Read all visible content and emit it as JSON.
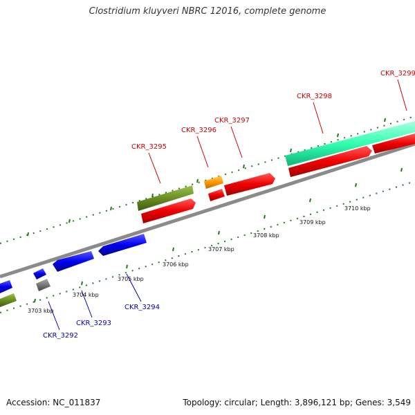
{
  "title": "Clostridium kluyveri NBRC 12016, complete genome",
  "footer": {
    "accession": "Accession: NC_011837",
    "summary": "Topology: circular; Length: 3,896,121 bp; Genes: 3,549"
  },
  "colors": {
    "backbone": "#8a8a8a",
    "tick": "#1f7a1f",
    "red": "#ee0000",
    "olive": "#6b8e23",
    "orange": "#ff9900",
    "teal": "#33ffb0",
    "blue": "#0000ee",
    "gray": "#777777",
    "label_top": "#cc0000",
    "label_bottom": "#0000bb"
  },
  "ticks": [
    {
      "label": "3703 kbp"
    },
    {
      "label": "3704 kbp"
    },
    {
      "label": "3705 kbp"
    },
    {
      "label": "3706 kbp"
    },
    {
      "label": "3707 kbp"
    },
    {
      "label": "3708 kbp"
    },
    {
      "label": "3709 kbp"
    },
    {
      "label": "3710 kbp"
    }
  ],
  "genes_top": [
    {
      "label": "CKR_3295"
    },
    {
      "label": "CKR_3296"
    },
    {
      "label": "CKR_3297"
    },
    {
      "label": "CKR_3298"
    },
    {
      "label": "CKR_3299"
    }
  ],
  "genes_bottom": [
    {
      "label": "CKR_3292"
    },
    {
      "label": "CKR_3293"
    },
    {
      "label": "CKR_3294"
    }
  ]
}
